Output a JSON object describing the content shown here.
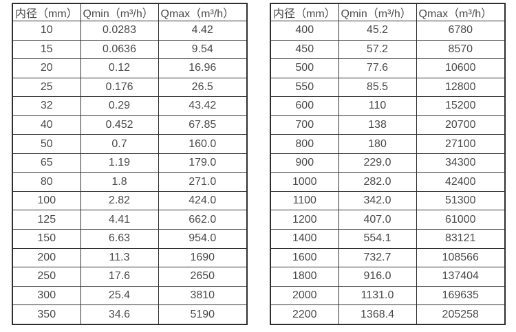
{
  "colors": {
    "background": "#ffffff",
    "border": "#2e2e2e",
    "text": "#4a4a4a"
  },
  "tables": [
    {
      "headers": [
        "内径（mm）",
        "Qmin（m³/h）",
        "Qmax（m³/h）"
      ],
      "rows": [
        [
          "10",
          "0.0283",
          "4.42"
        ],
        [
          "15",
          "0.0636",
          "9.54"
        ],
        [
          "20",
          "0.12",
          "16.96"
        ],
        [
          "25",
          "0.176",
          "26.5"
        ],
        [
          "32",
          "0.29",
          "43.42"
        ],
        [
          "40",
          "0.452",
          "67.85"
        ],
        [
          "50",
          "0.7",
          "160.0"
        ],
        [
          "65",
          "1.19",
          "179.0"
        ],
        [
          "80",
          "1.8",
          "271.0"
        ],
        [
          "100",
          "2.82",
          "424.0"
        ],
        [
          "125",
          "4.41",
          "662.0"
        ],
        [
          "150",
          "6.63",
          "954.0"
        ],
        [
          "200",
          "11.3",
          "1690"
        ],
        [
          "250",
          "17.6",
          "2650"
        ],
        [
          "300",
          "25.4",
          "3810"
        ],
        [
          "350",
          "34.6",
          "5190"
        ]
      ]
    },
    {
      "headers": [
        "内径（mm）",
        "Qmin（m³/h）",
        "Qmax（m³/h）"
      ],
      "rows": [
        [
          "400",
          "45.2",
          "6780"
        ],
        [
          "450",
          "57.2",
          "8570"
        ],
        [
          "500",
          "77.6",
          "10600"
        ],
        [
          "550",
          "85.5",
          "12800"
        ],
        [
          "600",
          "110",
          "15200"
        ],
        [
          "700",
          "138",
          "20700"
        ],
        [
          "800",
          "180",
          "27100"
        ],
        [
          "900",
          "229.0",
          "34300"
        ],
        [
          "1000",
          "282.0",
          "42400"
        ],
        [
          "1100",
          "342.0",
          "51300"
        ],
        [
          "1200",
          "407.0",
          "61000"
        ],
        [
          "1400",
          "554.1",
          "83121"
        ],
        [
          "1600",
          "732.7",
          "108566"
        ],
        [
          "1800",
          "916.0",
          "137404"
        ],
        [
          "2000",
          "1131.0",
          "169635"
        ],
        [
          "2200",
          "1368.4",
          "205258"
        ]
      ]
    }
  ]
}
